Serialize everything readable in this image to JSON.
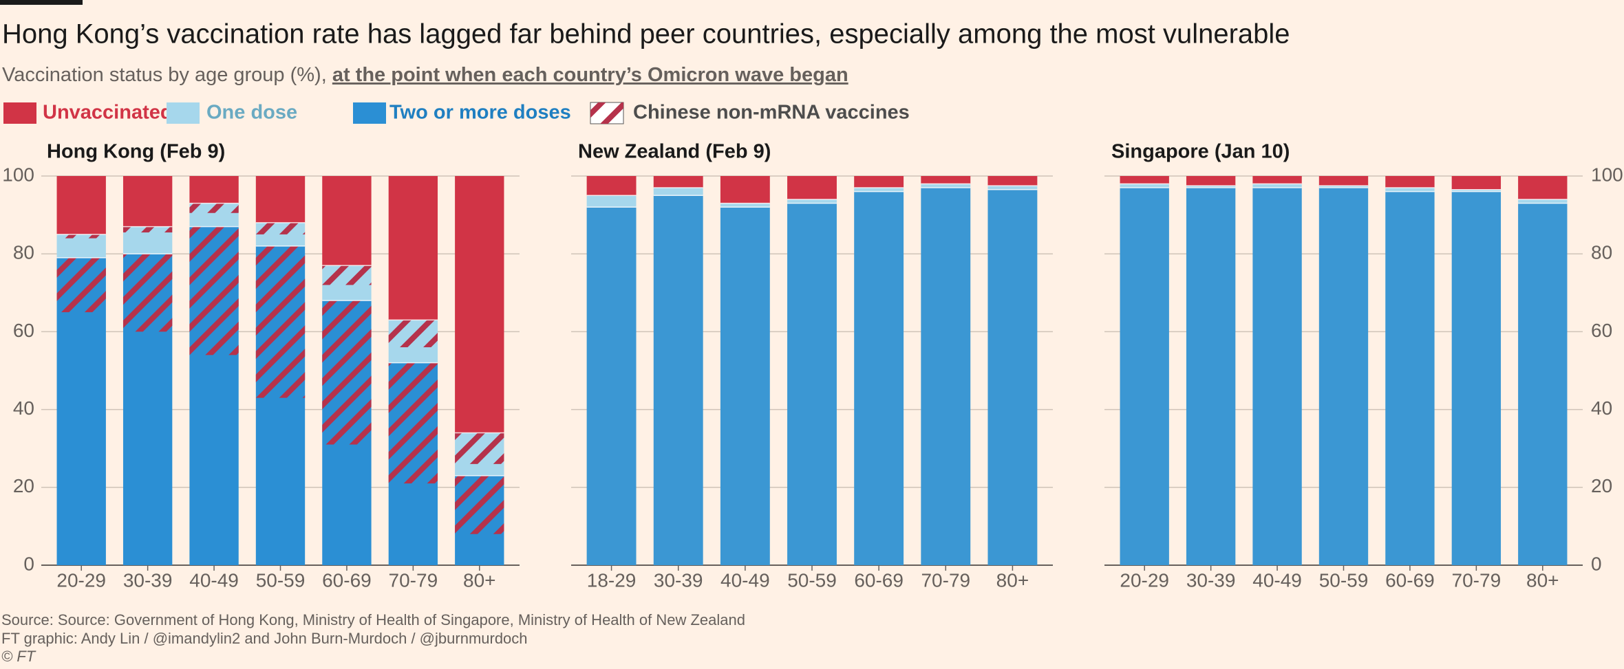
{
  "title": "Hong Kong’s vaccination rate has lagged far behind peer countries, especially among the most vulnerable",
  "subtitle": "Vaccination status by age group (%), ",
  "subtitle_link": "at the point when each country’s Omicron wave began",
  "hatch_legend": {
    "name": "Chinese non-mRNA vaccines",
    "color": "#b5324b"
  },
  "source": "Source: Source: Government of Hong Kong, Ministry of Health of Singapore, Ministry of Health of New Zealand",
  "credit": "FT graphic: Andy Lin / @imandylin2 and John Burn-Murdoch / @jburnmurdoch",
  "copyright": "© FT",
  "chart_data": [
    {
      "type": "bar",
      "stacked": true,
      "title": "Hong Kong (Feb 9)",
      "categories": [
        "20-29",
        "30-39",
        "40-49",
        "50-59",
        "60-69",
        "70-79",
        "80+"
      ],
      "series": [
        {
          "name": "Two or more doses",
          "color": "#2b8fd4",
          "values": [
            79,
            80,
            87,
            82,
            68,
            52,
            23
          ],
          "non_mrna": [
            14,
            20,
            33,
            39,
            37,
            31,
            15
          ]
        },
        {
          "name": "One dose",
          "color": "#a6d7ec",
          "values": [
            6,
            7,
            6,
            6,
            9,
            11,
            11
          ],
          "non_mrna": [
            1,
            1.5,
            2.5,
            3,
            5,
            7,
            8
          ]
        },
        {
          "name": "Unvaccinated",
          "color": "#d13446",
          "values": [
            15,
            13,
            7,
            12,
            23,
            37,
            66
          ]
        }
      ],
      "ylim": [
        0,
        100
      ],
      "yticks": [
        0,
        20,
        40,
        60,
        80,
        100
      ],
      "ytick_side": "left",
      "grid": true
    },
    {
      "type": "bar",
      "stacked": true,
      "title": "New Zealand (Feb 9)",
      "categories": [
        "18-29",
        "30-39",
        "40-49",
        "50-59",
        "60-69",
        "70-79",
        "80+"
      ],
      "series": [
        {
          "name": "Two or more doses",
          "color": "#3b97d3",
          "values": [
            92,
            95,
            92,
            93,
            96,
            97,
            96.5
          ]
        },
        {
          "name": "One dose",
          "color": "#a6d7ec",
          "values": [
            3,
            2,
            1,
            1,
            1,
            1,
            1
          ]
        },
        {
          "name": "Unvaccinated",
          "color": "#d13446",
          "values": [
            5,
            3,
            7,
            6,
            3,
            2,
            2.5
          ]
        }
      ],
      "ylim": [
        0,
        100
      ],
      "yticks": [
        0,
        20,
        40,
        60,
        80,
        100
      ],
      "grid": true
    },
    {
      "type": "bar",
      "stacked": true,
      "title": "Singapore (Jan 10)",
      "categories": [
        "20-29",
        "30-39",
        "40-49",
        "50-59",
        "60-69",
        "70-79",
        "80+"
      ],
      "series": [
        {
          "name": "Two or more doses",
          "color": "#3b97d3",
          "values": [
            97,
            97,
            97,
            97,
            96,
            96,
            93
          ]
        },
        {
          "name": "One dose",
          "color": "#a6d7ec",
          "values": [
            1,
            0.5,
            1,
            0.5,
            1,
            0.5,
            1
          ]
        },
        {
          "name": "Unvaccinated",
          "color": "#d13446",
          "values": [
            2,
            2.5,
            2,
            2.5,
            3,
            3.5,
            6
          ]
        }
      ],
      "ylim": [
        0,
        100
      ],
      "yticks": [
        0,
        20,
        40,
        60,
        80,
        100
      ],
      "ytick_side": "right",
      "grid": true
    }
  ]
}
